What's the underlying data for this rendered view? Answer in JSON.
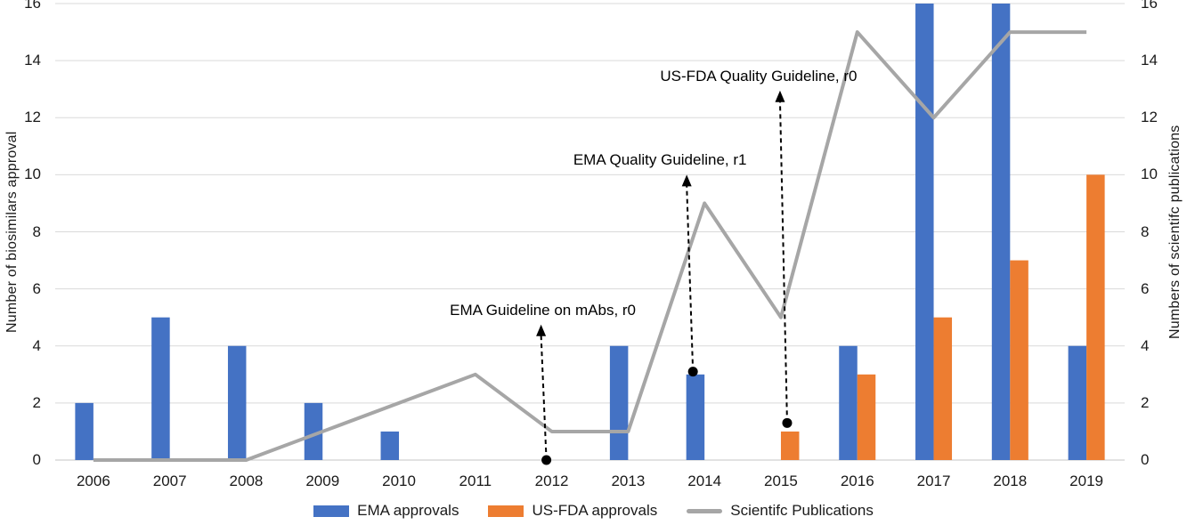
{
  "chart_data": {
    "type": "combo-bar-line",
    "title": "",
    "categories": [
      "2006",
      "2007",
      "2008",
      "2009",
      "2010",
      "2011",
      "2012",
      "2013",
      "2014",
      "2015",
      "2016",
      "2017",
      "2018",
      "2019"
    ],
    "series": [
      {
        "name": "EMA approvals",
        "type": "bar",
        "axis": "left",
        "color": "#4472C4",
        "values": [
          2,
          5,
          4,
          2,
          1,
          0,
          0,
          4,
          3,
          0,
          4,
          16,
          16,
          4
        ]
      },
      {
        "name": "US-FDA approvals",
        "type": "bar",
        "axis": "left",
        "color": "#ED7D31",
        "values": [
          0,
          0,
          0,
          0,
          0,
          0,
          0,
          0,
          0,
          1,
          3,
          5,
          7,
          10
        ]
      },
      {
        "name": "Scientifc Publications",
        "type": "line",
        "axis": "right",
        "color": "#A6A6A6",
        "values": [
          0,
          0,
          0,
          1,
          2,
          3,
          1,
          1,
          9,
          5,
          15,
          12,
          15,
          15
        ]
      }
    ],
    "xlabel": "",
    "ylabel_left": "Number of biosimilars approval",
    "ylabel_right": "Numbers of scientifc publications",
    "ylim": [
      0,
      16
    ],
    "ytick_step": 2,
    "yticks": [
      "0",
      "2",
      "4",
      "6",
      "8",
      "10",
      "12",
      "14",
      "16"
    ],
    "grid": true,
    "legend_position": "bottom",
    "annotations": [
      {
        "label": "EMA Guideline on mAbs, r0",
        "category": "2012",
        "dot_value": 0,
        "arrow_tip_value": 4.75,
        "dot_dx": -6,
        "tip_dx": -12,
        "text_dx": -10
      },
      {
        "label": "EMA Quality Guideline, r1",
        "category": "2014",
        "dot_value": 3.1,
        "arrow_tip_value": 10,
        "dot_dx": -13,
        "tip_dx": -20,
        "text_dx": -50
      },
      {
        "label": "US-FDA Quality Guideline, r0",
        "category": "2015",
        "dot_value": 1.3,
        "arrow_tip_value": 12.95,
        "dot_dx": 7,
        "tip_dx": -1,
        "text_dx": -25
      }
    ],
    "colors": {
      "grid": "#D9D9D9",
      "axis_line": "#C6C6C6",
      "text": "#1A1A1A",
      "annotation": "#000000"
    }
  }
}
